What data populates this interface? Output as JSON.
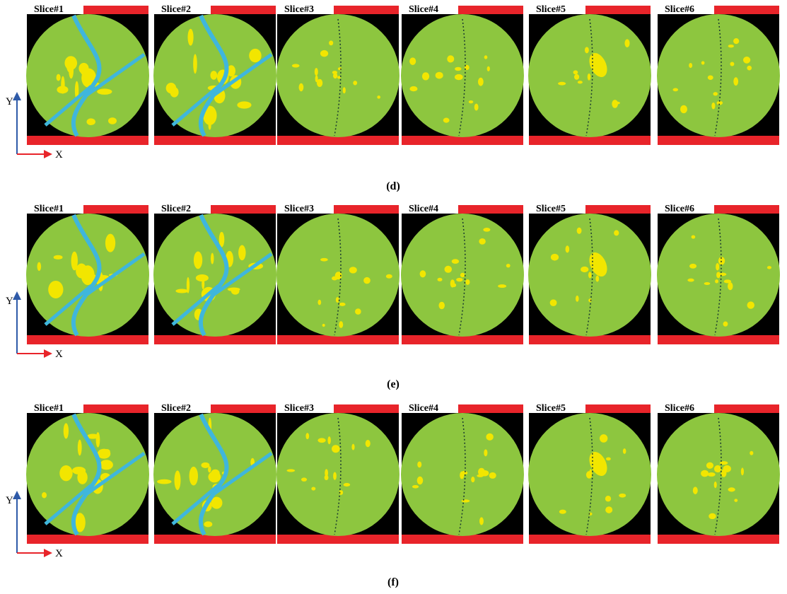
{
  "panels": [
    {
      "caption": "(d)",
      "y_axis": "Y",
      "x_axis": "X",
      "slices": [
        "Slice#1",
        "Slice#2",
        "Slice#3",
        "Slice#4",
        "Slice#5",
        "Slice#6"
      ]
    },
    {
      "caption": "(e)",
      "y_axis": "Y",
      "x_axis": "X",
      "slices": [
        "Slice#1",
        "Slice#2",
        "Slice#3",
        "Slice#4",
        "Slice#5",
        "Slice#6"
      ]
    },
    {
      "caption": "(f)",
      "y_axis": "Y",
      "x_axis": "X",
      "slices": [
        "Slice#1",
        "Slice#2",
        "Slice#3",
        "Slice#4",
        "Slice#5",
        "Slice#6"
      ]
    }
  ]
}
